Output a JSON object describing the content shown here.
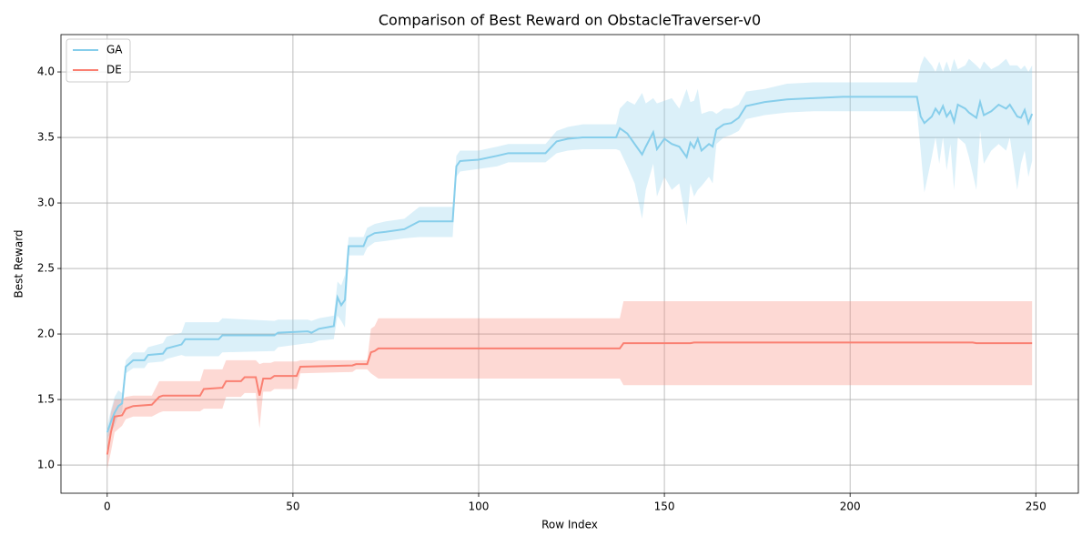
{
  "chart_data": {
    "type": "line",
    "title": "Comparison of Best Reward on ObstacleTraverser-v0",
    "x_label": "Row Index",
    "y_label": "Best Reward",
    "xlim": [
      -12.45,
      261.45
    ],
    "ylim": [
      0.785,
      4.285
    ],
    "xticks": [
      0,
      50,
      100,
      150,
      200,
      250
    ],
    "yticks": [
      {
        "value": 1.0,
        "label": "1.0"
      },
      {
        "value": 1.5,
        "label": "1.5"
      },
      {
        "value": 2.0,
        "label": "2.0"
      },
      {
        "value": 2.5,
        "label": "2.5"
      },
      {
        "value": 3.0,
        "label": "3.0"
      },
      {
        "value": 3.5,
        "label": "3.5"
      },
      {
        "value": 4.0,
        "label": "4.0"
      }
    ],
    "grid": true,
    "legend": "upper left",
    "series": [
      {
        "name": "GA",
        "color": "#87ceeb",
        "x": [
          0,
          1,
          2,
          3,
          4,
          5,
          7,
          10,
          11,
          15,
          16,
          20,
          21,
          30,
          31,
          45,
          46,
          54,
          55,
          57,
          61,
          62,
          63,
          64,
          65,
          69,
          70,
          72,
          75,
          80,
          84,
          93,
          94,
          95,
          100,
          105,
          108,
          118,
          121,
          124,
          128,
          137,
          138,
          140,
          142,
          144,
          145,
          147,
          148,
          150,
          152,
          154,
          156,
          157,
          158,
          159,
          160,
          162,
          163,
          164,
          166,
          168,
          170,
          172,
          177,
          183,
          190,
          198,
          218,
          219,
          220,
          222,
          223,
          224,
          225,
          226,
          227,
          228,
          229,
          231,
          232,
          234,
          235,
          236,
          238,
          240,
          242,
          243,
          245,
          246,
          247,
          248,
          249
        ],
        "values": [
          1.25,
          1.33,
          1.4,
          1.45,
          1.47,
          1.75,
          1.8,
          1.8,
          1.84,
          1.85,
          1.89,
          1.92,
          1.96,
          1.96,
          1.99,
          1.99,
          2.01,
          2.02,
          2.01,
          2.04,
          2.06,
          2.28,
          2.22,
          2.26,
          2.67,
          2.67,
          2.74,
          2.77,
          2.78,
          2.8,
          2.86,
          2.86,
          3.28,
          3.32,
          3.33,
          3.36,
          3.38,
          3.38,
          3.47,
          3.49,
          3.5,
          3.5,
          3.57,
          3.53,
          3.45,
          3.37,
          3.43,
          3.54,
          3.41,
          3.49,
          3.45,
          3.43,
          3.35,
          3.46,
          3.42,
          3.49,
          3.4,
          3.45,
          3.43,
          3.56,
          3.6,
          3.61,
          3.65,
          3.74,
          3.77,
          3.79,
          3.8,
          3.81,
          3.81,
          3.66,
          3.61,
          3.66,
          3.72,
          3.68,
          3.74,
          3.66,
          3.7,
          3.62,
          3.75,
          3.72,
          3.69,
          3.65,
          3.77,
          3.67,
          3.7,
          3.75,
          3.72,
          3.75,
          3.66,
          3.65,
          3.71,
          3.61,
          3.68
        ],
        "lower": [
          1.2,
          1.25,
          1.3,
          1.38,
          1.4,
          1.7,
          1.74,
          1.74,
          1.78,
          1.79,
          1.81,
          1.84,
          1.83,
          1.83,
          1.86,
          1.87,
          1.9,
          1.93,
          1.93,
          1.95,
          1.96,
          2.14,
          2.1,
          2.05,
          2.6,
          2.6,
          2.66,
          2.7,
          2.71,
          2.73,
          2.74,
          2.74,
          3.2,
          3.24,
          3.26,
          3.28,
          3.31,
          3.31,
          3.38,
          3.4,
          3.41,
          3.41,
          3.4,
          3.28,
          3.15,
          2.88,
          3.1,
          3.3,
          3.05,
          3.2,
          3.1,
          3.15,
          2.83,
          3.15,
          3.05,
          3.1,
          3.13,
          3.2,
          3.15,
          3.45,
          3.5,
          3.52,
          3.55,
          3.64,
          3.67,
          3.69,
          3.7,
          3.7,
          3.7,
          3.4,
          3.08,
          3.35,
          3.5,
          3.3,
          3.5,
          3.25,
          3.45,
          3.1,
          3.5,
          3.45,
          3.35,
          3.1,
          3.55,
          3.3,
          3.4,
          3.45,
          3.4,
          3.5,
          3.1,
          3.3,
          3.4,
          3.2,
          3.32
        ],
        "upper": [
          1.3,
          1.42,
          1.52,
          1.57,
          1.55,
          1.8,
          1.86,
          1.86,
          1.9,
          1.93,
          1.98,
          2.01,
          2.09,
          2.09,
          2.12,
          2.1,
          2.11,
          2.11,
          2.1,
          2.12,
          2.14,
          2.4,
          2.37,
          2.45,
          2.74,
          2.74,
          2.81,
          2.84,
          2.86,
          2.88,
          2.97,
          2.97,
          3.36,
          3.4,
          3.4,
          3.43,
          3.45,
          3.45,
          3.55,
          3.58,
          3.6,
          3.6,
          3.72,
          3.78,
          3.75,
          3.84,
          3.76,
          3.8,
          3.76,
          3.78,
          3.8,
          3.72,
          3.87,
          3.77,
          3.78,
          3.87,
          3.68,
          3.7,
          3.7,
          3.68,
          3.72,
          3.72,
          3.75,
          3.85,
          3.87,
          3.91,
          3.92,
          3.92,
          3.92,
          4.05,
          4.12,
          4.05,
          4.0,
          4.08,
          4.0,
          4.08,
          4.0,
          4.1,
          4.02,
          4.05,
          4.1,
          4.05,
          4.02,
          4.08,
          4.02,
          4.05,
          4.1,
          4.05,
          4.05,
          4.02,
          4.05,
          4.0,
          4.05
        ]
      },
      {
        "name": "DE",
        "color": "#fa8072",
        "x": [
          0,
          1,
          2,
          4,
          5,
          7,
          12,
          14,
          15,
          25,
          26,
          31,
          32,
          36,
          37,
          40,
          41,
          42,
          44,
          45,
          51,
          52,
          66,
          67,
          70,
          71,
          72,
          73,
          138,
          139,
          157,
          158,
          233,
          234,
          249
        ],
        "values": [
          1.08,
          1.25,
          1.37,
          1.38,
          1.43,
          1.45,
          1.46,
          1.52,
          1.53,
          1.53,
          1.58,
          1.59,
          1.64,
          1.64,
          1.67,
          1.67,
          1.53,
          1.66,
          1.66,
          1.68,
          1.68,
          1.75,
          1.76,
          1.77,
          1.77,
          1.86,
          1.87,
          1.89,
          1.89,
          1.93,
          1.93,
          1.935,
          1.935,
          1.93,
          1.93
        ],
        "lower": [
          0.97,
          1.1,
          1.25,
          1.3,
          1.35,
          1.37,
          1.37,
          1.4,
          1.41,
          1.41,
          1.43,
          1.43,
          1.52,
          1.52,
          1.55,
          1.55,
          1.28,
          1.56,
          1.56,
          1.58,
          1.58,
          1.7,
          1.71,
          1.73,
          1.73,
          1.7,
          1.68,
          1.66,
          1.66,
          1.61,
          1.61,
          1.61,
          1.61,
          1.61,
          1.61
        ],
        "upper": [
          1.2,
          1.4,
          1.5,
          1.5,
          1.52,
          1.53,
          1.53,
          1.64,
          1.64,
          1.64,
          1.73,
          1.73,
          1.8,
          1.8,
          1.8,
          1.8,
          1.77,
          1.78,
          1.78,
          1.79,
          1.79,
          1.8,
          1.8,
          1.8,
          1.8,
          2.04,
          2.06,
          2.12,
          2.12,
          2.25,
          2.25,
          2.25,
          2.25,
          2.25,
          2.25
        ]
      }
    ]
  }
}
